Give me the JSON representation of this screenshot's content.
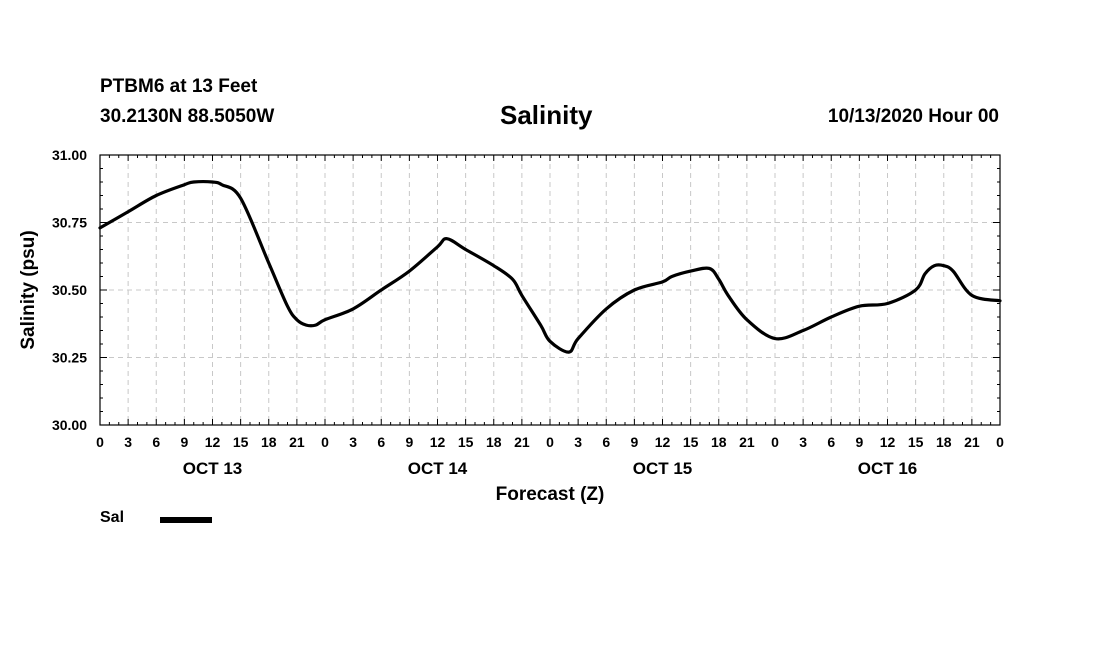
{
  "header": {
    "station": "PTBM6 at 13 Feet",
    "location": "30.2130N 88.5050W",
    "title": "Salinity",
    "run_time": "10/13/2020 Hour 00"
  },
  "legend": {
    "label": "Sal"
  },
  "chart_data": {
    "type": "line",
    "title": "Salinity",
    "ylabel": "Salinity (psu)",
    "xlabel": "Forecast (Z)",
    "ylim": [
      30.0,
      31.0
    ],
    "xlim": [
      0,
      96
    ],
    "x_unit": "forecast hours from 10/13/2020 00Z",
    "yticks": [
      "30.00",
      "30.25",
      "30.50",
      "30.75",
      "31.00"
    ],
    "y_tick_values": [
      30.0,
      30.25,
      30.5,
      30.75,
      31.0
    ],
    "xtick_labels": [
      "0",
      "3",
      "6",
      "9",
      "12",
      "15",
      "18",
      "21",
      "0",
      "3",
      "6",
      "9",
      "12",
      "15",
      "18",
      "21",
      "0",
      "3",
      "6",
      "9",
      "12",
      "15",
      "18",
      "21",
      "0",
      "3",
      "6",
      "9",
      "12",
      "15",
      "18",
      "21",
      "0"
    ],
    "day_labels": [
      {
        "label": "OCT 13",
        "hour": 12
      },
      {
        "label": "OCT 14",
        "hour": 36
      },
      {
        "label": "OCT 15",
        "hour": 60
      },
      {
        "label": "OCT 16",
        "hour": 84
      }
    ],
    "grid": true,
    "legend_position": "bottom-left",
    "line_color": "#000000",
    "series": [
      {
        "name": "Sal",
        "x": [
          0,
          3,
          6,
          9,
          10,
          12,
          13,
          15,
          18,
          20,
          21,
          22,
          23,
          24,
          27,
          30,
          33,
          36,
          37,
          39,
          42,
          44,
          45,
          47,
          48,
          50,
          51,
          54,
          57,
          60,
          61,
          63,
          65,
          66,
          67,
          69,
          72,
          75,
          78,
          81,
          84,
          87,
          88,
          89,
          90,
          91,
          93,
          96
        ],
        "y": [
          30.73,
          30.79,
          30.85,
          30.89,
          30.9,
          30.9,
          30.89,
          30.84,
          30.6,
          30.44,
          30.39,
          30.37,
          30.37,
          30.39,
          30.43,
          30.5,
          30.57,
          30.66,
          30.69,
          30.65,
          30.59,
          30.54,
          30.48,
          30.37,
          30.31,
          30.27,
          30.32,
          30.43,
          30.5,
          30.53,
          30.55,
          30.57,
          30.58,
          30.54,
          30.48,
          30.39,
          30.32,
          30.35,
          30.4,
          30.44,
          30.45,
          30.5,
          30.56,
          30.59,
          30.59,
          30.57,
          30.48,
          30.46
        ]
      }
    ]
  }
}
